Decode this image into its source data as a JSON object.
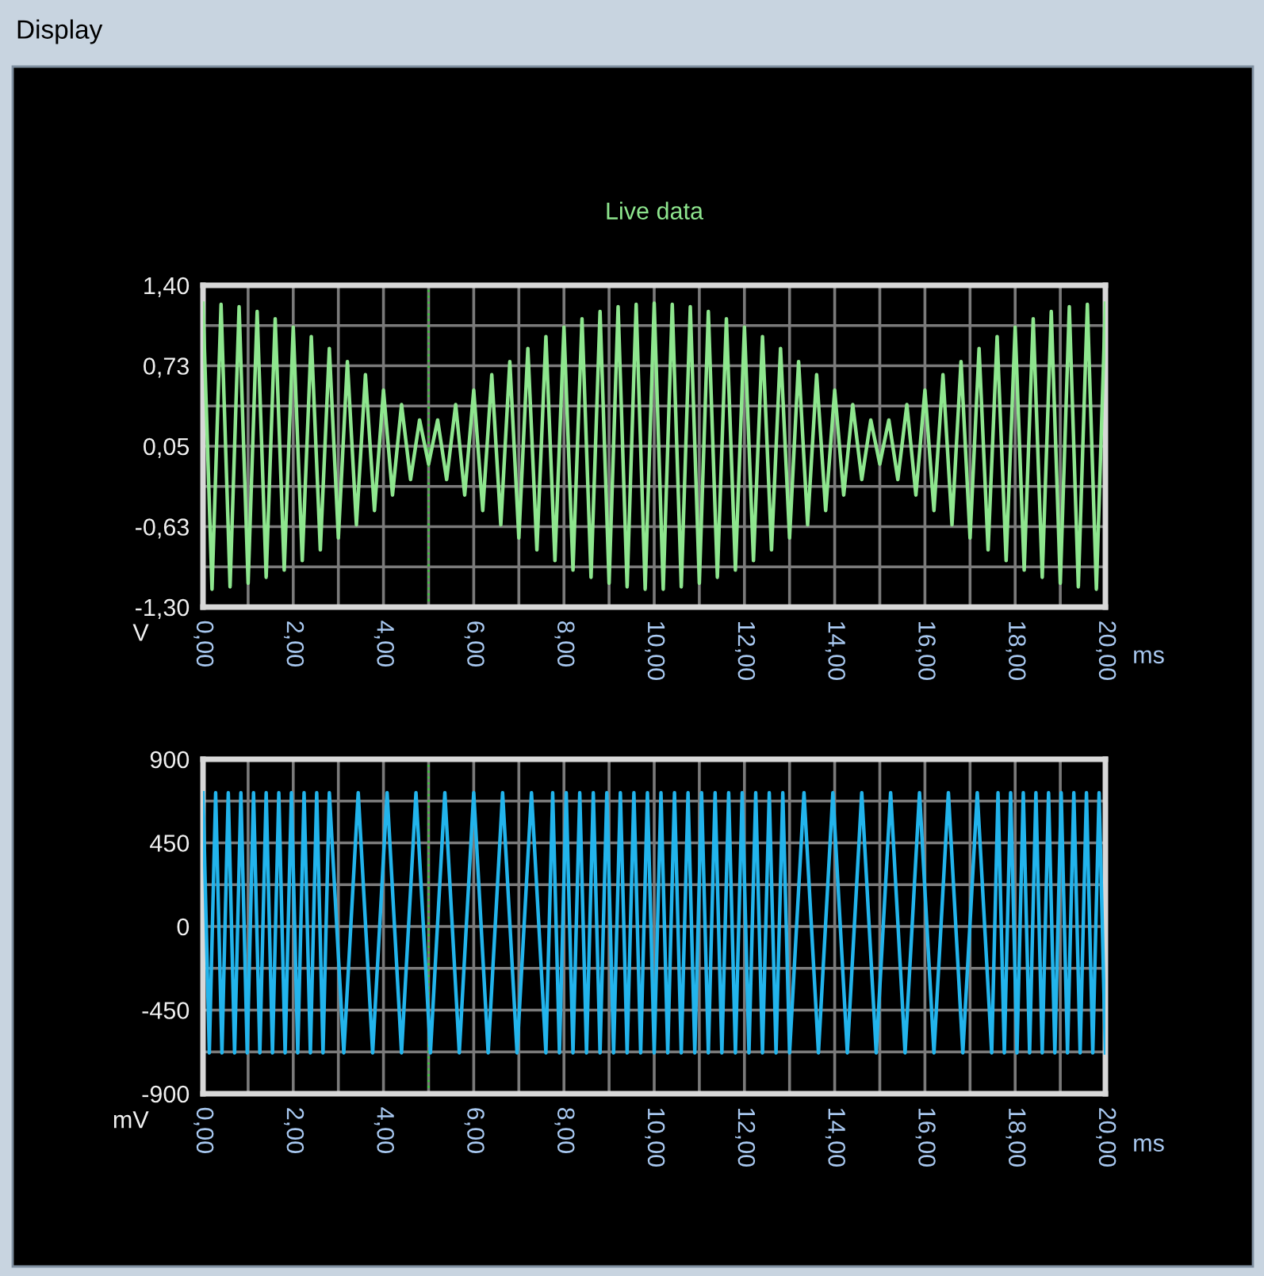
{
  "chart_data": [
    {
      "type": "line",
      "title": "Live data",
      "xlabel": "ms",
      "ylabel": "V",
      "annotations": [
        "Display"
      ],
      "xlim": [
        0,
        20
      ],
      "xticks": [
        {
          "value": 0,
          "label": "0,00"
        },
        {
          "value": 2,
          "label": "2,00"
        },
        {
          "value": 4,
          "label": "4,00"
        },
        {
          "value": 6,
          "label": "6,00"
        },
        {
          "value": 8,
          "label": "8,00"
        },
        {
          "value": 10,
          "label": "10,00"
        },
        {
          "value": 12,
          "label": "12,00"
        },
        {
          "value": 14,
          "label": "14,00"
        },
        {
          "value": 16,
          "label": "16,00"
        },
        {
          "value": 18,
          "label": "18,00"
        },
        {
          "value": 20,
          "label": "20,00"
        }
      ],
      "ylim": [
        -1.3,
        1.4
      ],
      "yticks": [
        {
          "value": -1.3,
          "label": "-1,30"
        },
        {
          "value": -0.625,
          "label": "-0,63"
        },
        {
          "value": 0.05,
          "label": "0,05"
        },
        {
          "value": 0.725,
          "label": "0,73"
        },
        {
          "value": 1.4,
          "label": "1,40"
        }
      ],
      "grid": true,
      "legend": false,
      "marker": "none",
      "line_style": "solid",
      "ref_lines": [
        {
          "axis": "x",
          "value": 5,
          "color": "#3cc83c",
          "line_style": "dotted"
        }
      ],
      "series": [
        {
          "color": "#8ee68e",
          "x": [
            0,
            0.2,
            0.4,
            0.6,
            0.8,
            1,
            1.2,
            1.4,
            1.6,
            1.8,
            2,
            2.2,
            2.4,
            2.6,
            2.8,
            3,
            3.2,
            3.4,
            3.6,
            3.8,
            4,
            4.2,
            4.4,
            4.6,
            4.8,
            5,
            5.2,
            5.4,
            5.6,
            5.8,
            6,
            6.2,
            6.4,
            6.6,
            6.8,
            7,
            7.2,
            7.4,
            7.6,
            7.8,
            8,
            8.2,
            8.4,
            8.6,
            8.8,
            9,
            9.2,
            9.4,
            9.6,
            9.8,
            10,
            10.2,
            10.4,
            10.6,
            10.8,
            11,
            11.2,
            11.4,
            11.6,
            11.8,
            12,
            12.2,
            12.4,
            12.6,
            12.8,
            13,
            13.2,
            13.4,
            13.6,
            13.8,
            14,
            14.2,
            14.4,
            14.6,
            14.8,
            15,
            15.2,
            15.4,
            15.6,
            15.8,
            16,
            16.2,
            16.4,
            16.6,
            16.8,
            17,
            17.2,
            17.4,
            17.6,
            17.8,
            18,
            18.2,
            18.4,
            18.6,
            18.8,
            19,
            19.2,
            19.4,
            19.6,
            19.8,
            20
          ],
          "values": [
            1.25,
            -1.15,
            1.24,
            -1.13,
            1.22,
            -1.1,
            1.18,
            -1.05,
            1.12,
            -0.99,
            1.05,
            -0.91,
            0.97,
            -0.82,
            0.87,
            -0.72,
            0.76,
            -0.61,
            0.65,
            -0.49,
            0.52,
            -0.36,
            0.4,
            -0.23,
            0.27,
            -0.1,
            0.27,
            -0.23,
            0.4,
            -0.36,
            0.52,
            -0.49,
            0.65,
            -0.61,
            0.76,
            -0.72,
            0.87,
            -0.82,
            0.97,
            -0.91,
            1.05,
            -0.99,
            1.12,
            -1.05,
            1.18,
            -1.1,
            1.22,
            -1.13,
            1.24,
            -1.15,
            1.25,
            -1.15,
            1.24,
            -1.13,
            1.22,
            -1.1,
            1.18,
            -1.05,
            1.12,
            -0.99,
            1.05,
            -0.91,
            0.97,
            -0.82,
            0.87,
            -0.72,
            0.76,
            -0.61,
            0.65,
            -0.49,
            0.52,
            -0.36,
            0.4,
            -0.23,
            0.27,
            -0.1,
            0.27,
            -0.23,
            0.4,
            -0.36,
            0.52,
            -0.49,
            0.65,
            -0.61,
            0.76,
            -0.72,
            0.87,
            -0.82,
            0.97,
            -0.91,
            1.05,
            -0.99,
            1.12,
            -1.05,
            1.18,
            -1.1,
            1.22,
            -1.13,
            1.24,
            -1.15,
            1.25
          ]
        }
      ]
    },
    {
      "type": "line",
      "xlabel": "ms",
      "ylabel": "mV",
      "xlim": [
        0,
        20
      ],
      "xticks": [
        {
          "value": 0,
          "label": "0,00"
        },
        {
          "value": 2,
          "label": "2,00"
        },
        {
          "value": 4,
          "label": "4,00"
        },
        {
          "value": 6,
          "label": "6,00"
        },
        {
          "value": 8,
          "label": "8,00"
        },
        {
          "value": 10,
          "label": "10,00"
        },
        {
          "value": 12,
          "label": "12,00"
        },
        {
          "value": 14,
          "label": "14,00"
        },
        {
          "value": 16,
          "label": "16,00"
        },
        {
          "value": 18,
          "label": "18,00"
        },
        {
          "value": 20,
          "label": "20,00"
        }
      ],
      "ylim": [
        -900,
        900
      ],
      "yticks": [
        -900,
        -450,
        0,
        450,
        900
      ],
      "grid": true,
      "legend": false,
      "marker": "none",
      "line_style": "solid",
      "ref_lines": [
        {
          "axis": "x",
          "value": 5,
          "color": "#3cc83c",
          "line_style": "dotted"
        }
      ],
      "series": [
        {
          "color": "#22b4ec",
          "x": [
            0,
            0.14,
            0.28,
            0.42,
            0.56,
            0.7,
            0.84,
            0.98,
            1.12,
            1.26,
            1.4,
            1.54,
            1.68,
            1.82,
            1.96,
            2.1,
            2.24,
            2.38,
            2.52,
            2.66,
            2.8,
            3.12,
            3.44,
            3.76,
            4.08,
            4.4,
            4.72,
            5.04,
            5.36,
            5.68,
            6.0,
            6.32,
            6.64,
            6.96,
            7.28,
            7.6,
            7.75,
            7.9,
            8.05,
            8.2,
            8.35,
            8.5,
            8.65,
            8.8,
            8.95,
            9.1,
            9.25,
            9.4,
            9.55,
            9.7,
            9.85,
            10.0,
            10.15,
            10.3,
            10.45,
            10.6,
            10.75,
            10.9,
            11.05,
            11.2,
            11.35,
            11.5,
            11.65,
            11.8,
            11.95,
            12.1,
            12.25,
            12.4,
            12.55,
            12.7,
            12.85,
            13.0,
            13.32,
            13.64,
            13.96,
            14.28,
            14.6,
            14.92,
            15.24,
            15.56,
            15.88,
            16.2,
            16.52,
            16.84,
            17.16,
            17.48,
            17.62,
            17.76,
            17.9,
            18.04,
            18.18,
            18.32,
            18.46,
            18.6,
            18.74,
            18.88,
            19.02,
            19.16,
            19.3,
            19.44,
            19.58,
            19.72,
            19.86,
            20.0
          ],
          "values": [
            720,
            -680,
            720,
            -680,
            720,
            -680,
            720,
            -680,
            720,
            -680,
            720,
            -680,
            720,
            -680,
            720,
            -680,
            720,
            -680,
            720,
            -680,
            720,
            -680,
            720,
            -680,
            720,
            -680,
            720,
            -680,
            720,
            -680,
            720,
            -680,
            720,
            -680,
            720,
            -680,
            720,
            -680,
            720,
            -680,
            720,
            -680,
            720,
            -680,
            720,
            -680,
            720,
            -680,
            720,
            -680,
            720,
            -680,
            720,
            -680,
            720,
            -680,
            720,
            -680,
            720,
            -680,
            720,
            -680,
            720,
            -680,
            720,
            -680,
            720,
            -680,
            720,
            -680,
            720,
            -680,
            720,
            -680,
            720,
            -680,
            720,
            -680,
            720,
            -680,
            720,
            -680,
            720,
            -680,
            720,
            -680,
            720,
            -680,
            720,
            -680,
            720,
            -680,
            720,
            -680,
            720,
            -680,
            720,
            -680,
            720,
            -680,
            720,
            -680,
            720,
            -680
          ]
        }
      ]
    }
  ]
}
